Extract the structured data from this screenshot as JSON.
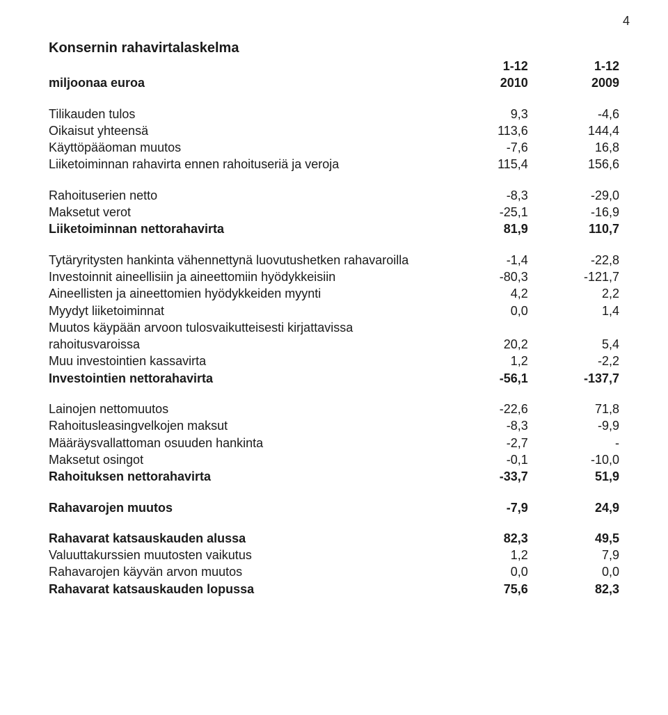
{
  "page_number": "4",
  "title": "Konsernin rahavirtalaskelma",
  "col_headers": {
    "sub": "miljoonaa euroa",
    "c1_top": "1-12",
    "c2_top": "1-12",
    "c1_bot": "2010",
    "c2_bot": "2009"
  },
  "rows": [
    {
      "label": "Tilikauden tulos",
      "c1": "9,3",
      "c2": "-4,6"
    },
    {
      "label": "Oikaisut yhteensä",
      "c1": "113,6",
      "c2": "144,4"
    },
    {
      "label": "Käyttöpääoman muutos",
      "c1": "-7,6",
      "c2": "16,8"
    },
    {
      "label": "Liiketoiminnan rahavirta ennen rahoituseriä ja veroja",
      "c1": "115,4",
      "c2": "156,6"
    }
  ],
  "rows2": [
    {
      "label": "Rahoituserien netto",
      "c1": "-8,3",
      "c2": "-29,0"
    },
    {
      "label": "Maksetut verot",
      "c1": "-25,1",
      "c2": "-16,9"
    },
    {
      "label": "Liiketoiminnan nettorahavirta",
      "c1": "81,9",
      "c2": "110,7",
      "bold": true
    }
  ],
  "rows3": [
    {
      "label": "Tytäryritysten hankinta vähennettynä luovutushetken rahavaroilla",
      "c1": "-1,4",
      "c2": "-22,8"
    },
    {
      "label": "Investoinnit aineellisiin ja aineettomiin hyödykkeisiin",
      "c1": "-80,3",
      "c2": "-121,7"
    },
    {
      "label": "Aineellisten ja aineettomien hyödykkeiden myynti",
      "c1": "4,2",
      "c2": "2,2"
    },
    {
      "label": "Myydyt liiketoiminnat",
      "c1": "0,0",
      "c2": "1,4"
    },
    {
      "label": "Muutos käypään arvoon tulosvaikutteisesti kirjattavissa rahoitusvaroissa",
      "c1": "20,2",
      "c2": "5,4"
    },
    {
      "label": "Muu investointien kassavirta",
      "c1": "1,2",
      "c2": "-2,2"
    },
    {
      "label": "Investointien nettorahavirta",
      "c1": "-56,1",
      "c2": "-137,7",
      "bold": true
    }
  ],
  "rows4": [
    {
      "label": "Lainojen nettomuutos",
      "c1": "-22,6",
      "c2": "71,8"
    },
    {
      "label": "Rahoitusleasingvelkojen maksut",
      "c1": "-8,3",
      "c2": "-9,9"
    },
    {
      "label": "Määräysvallattoman osuuden hankinta",
      "c1": "-2,7",
      "c2": "-"
    },
    {
      "label": "Maksetut osingot",
      "c1": "-0,1",
      "c2": "-10,0"
    },
    {
      "label": "Rahoituksen nettorahavirta",
      "c1": "-33,7",
      "c2": "51,9",
      "bold": true
    }
  ],
  "rows5": [
    {
      "label": "Rahavarojen muutos",
      "c1": "-7,9",
      "c2": "24,9",
      "bold": true
    }
  ],
  "rows6": [
    {
      "label": "Rahavarat katsauskauden alussa",
      "c1": "82,3",
      "c2": "49,5",
      "bold": true
    },
    {
      "label": "Valuuttakurssien muutosten vaikutus",
      "c1": "1,2",
      "c2": "7,9"
    },
    {
      "label": "Rahavarojen käyvän arvon muutos",
      "c1": "0,0",
      "c2": "0,0"
    },
    {
      "label": "Rahavarat katsauskauden lopussa",
      "c1": "75,6",
      "c2": "82,3",
      "bold": true
    }
  ],
  "styling": {
    "font_family": "Arial",
    "text_color": "#1a1a1a",
    "background_color": "#ffffff",
    "title_fontsize": 20,
    "body_fontsize": 18,
    "bold_weight": 700
  }
}
